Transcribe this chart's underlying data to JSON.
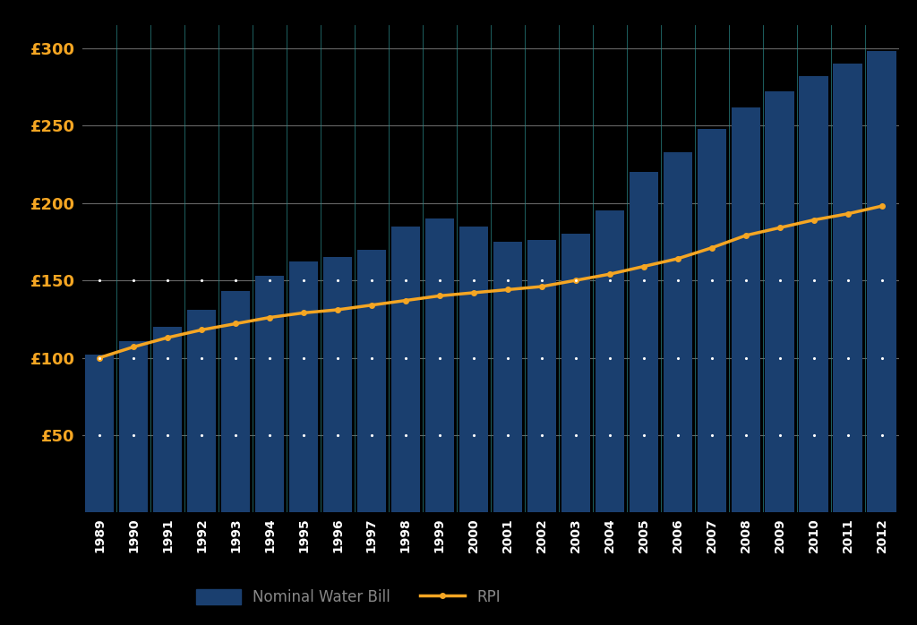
{
  "years": [
    1989,
    1990,
    1991,
    1992,
    1993,
    1994,
    1995,
    1996,
    1997,
    1998,
    1999,
    2000,
    2001,
    2002,
    2003,
    2004,
    2005,
    2006,
    2007,
    2008,
    2009,
    2010,
    2011,
    2012
  ],
  "nominal_water_bill": [
    102,
    111,
    120,
    131,
    143,
    153,
    162,
    165,
    170,
    185,
    190,
    185,
    175,
    176,
    180,
    195,
    220,
    233,
    248,
    262,
    272,
    282,
    290,
    298
  ],
  "rpi": [
    100,
    107,
    113,
    118,
    122,
    126,
    129,
    131,
    134,
    137,
    140,
    142,
    144,
    146,
    150,
    154,
    159,
    164,
    171,
    179,
    184,
    189,
    193,
    198
  ],
  "bar_color": "#1a3f6f",
  "line_color": "#f5a623",
  "background_color": "#000000",
  "plot_bg_color": "#000000",
  "grid_color": "#666666",
  "tick_color": "#f5a623",
  "ylabel_values": [
    50,
    100,
    150,
    200,
    250,
    300
  ],
  "ylabel_labels": [
    "£50",
    "£100",
    "£150",
    "£200",
    "£250",
    "£300"
  ],
  "ylim": [
    0,
    315
  ],
  "legend_bar_label": "Nominal Water Bill",
  "legend_line_label": "RPI",
  "teal_color": "#2a8a8a"
}
